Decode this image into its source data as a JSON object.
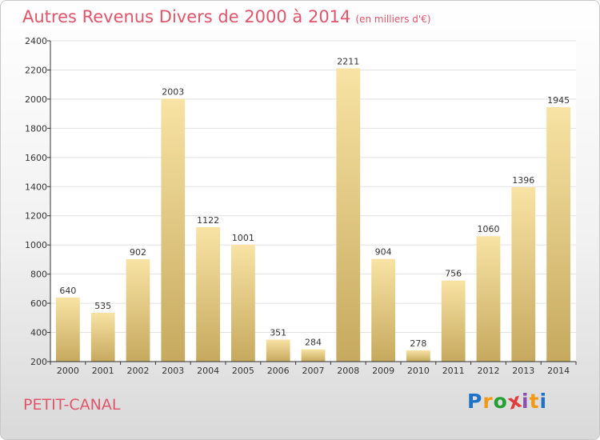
{
  "header": {
    "title": "Autres Revenus Divers de 2000 à 2014",
    "subtitle": "(en milliers d'€)"
  },
  "footer": {
    "place": "PETIT-CANAL",
    "logo": {
      "text": "Proxiti",
      "letters": [
        "P",
        "r",
        "o",
        "x",
        "i",
        "t",
        "i"
      ],
      "colors": [
        "#1e73c8",
        "#f29a14",
        "#23a02f",
        "#e23b3b",
        "#8a4fb0",
        "#f29a14",
        "#1e73c8"
      ]
    }
  },
  "chart_data": {
    "type": "bar",
    "categories": [
      "2000",
      "2001",
      "2002",
      "2003",
      "2004",
      "2005",
      "2006",
      "2007",
      "2008",
      "2009",
      "2010",
      "2011",
      "2012",
      "2013",
      "2014"
    ],
    "values": [
      640,
      535,
      902,
      2003,
      1122,
      1001,
      351,
      284,
      2211,
      904,
      278,
      756,
      1060,
      1396,
      1945
    ],
    "ylim": [
      200,
      2400
    ],
    "yticks": [
      200,
      400,
      600,
      800,
      1000,
      1200,
      1400,
      1600,
      1800,
      2000,
      2200,
      2400
    ],
    "grid": true,
    "colors": {
      "bar_light": "#f8e3a4",
      "bar_dark": "#c6a95e",
      "grid": "#e2e2e2",
      "axis": "#333333"
    }
  }
}
